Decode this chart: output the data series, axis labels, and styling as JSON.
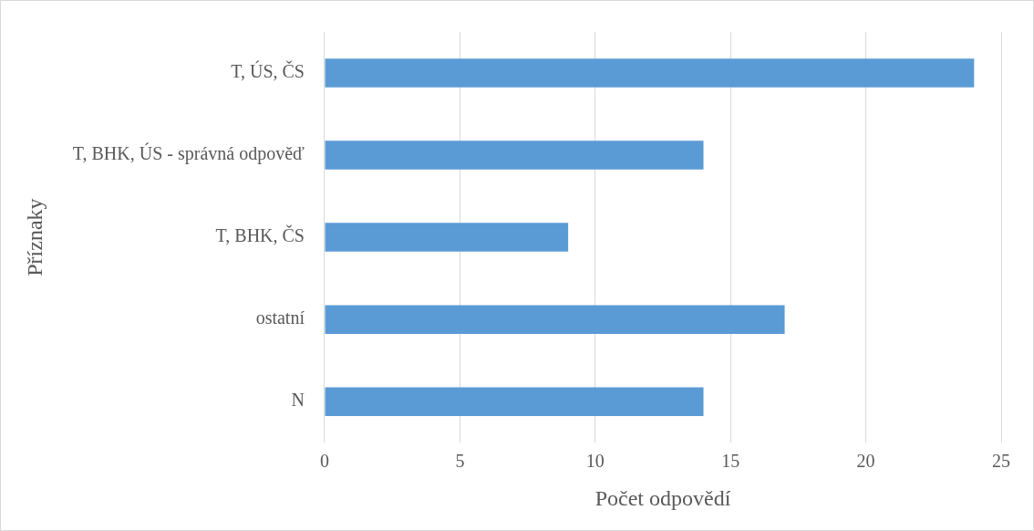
{
  "chart_data": {
    "type": "bar",
    "orientation": "horizontal",
    "xlabel": "Počet odpovědí",
    "ylabel": "Příznaky",
    "categories": [
      "T, ÚS, ČS",
      "T, BHK, ÚS - správná odpověď",
      "T, BHK, ČS",
      "ostatní",
      "N"
    ],
    "values": [
      24,
      14,
      9,
      17,
      14
    ],
    "color": "#5b9bd5",
    "xlim": [
      0,
      25
    ],
    "xticks": [
      0,
      5,
      10,
      15,
      20,
      25
    ],
    "grid": "x",
    "legend": false
  }
}
